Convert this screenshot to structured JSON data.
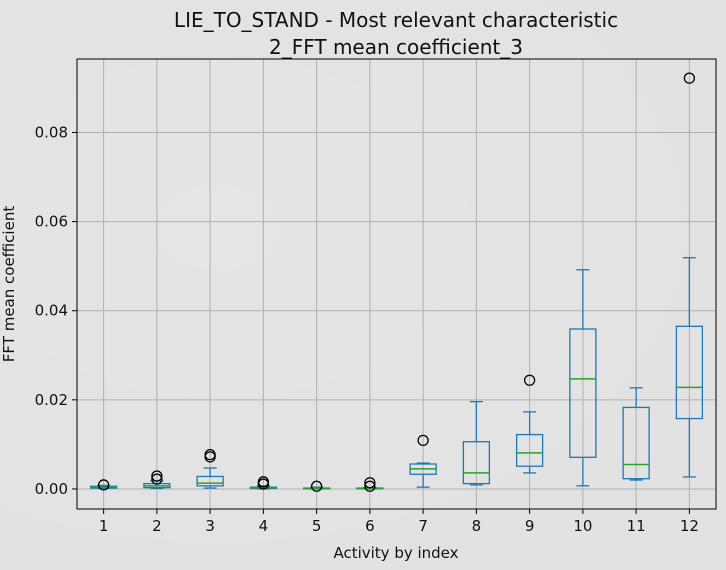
{
  "chart_data": {
    "type": "box",
    "title": "LIE_TO_STAND - Most relevant characteristic",
    "subtitle": "2_FFT mean coefficient_3",
    "xlabel": "Activity by index",
    "ylabel": "FFT mean coefficient",
    "ylim": [
      -0.0045,
      0.0965
    ],
    "yticks": [
      0.0,
      0.02,
      0.04,
      0.06,
      0.08
    ],
    "yticklabels": [
      "0.00",
      "0.02",
      "0.04",
      "0.06",
      "0.08"
    ],
    "grid": true,
    "box_color": "#1f77b4",
    "median_color": "#2ca02c",
    "categories": [
      "1",
      "2",
      "3",
      "4",
      "5",
      "6",
      "7",
      "8",
      "9",
      "10",
      "11",
      "12"
    ],
    "boxes": [
      {
        "whislo": 0.0001,
        "q1": 0.0002,
        "med": 0.0004,
        "q3": 0.0006,
        "whishi": 0.0008,
        "fliers": [
          0.0009
        ]
      },
      {
        "whislo": 0.0001,
        "q1": 0.0003,
        "med": 0.0007,
        "q3": 0.0012,
        "whishi": 0.0018,
        "fliers": [
          0.0022,
          0.0029
        ]
      },
      {
        "whislo": 0.0002,
        "q1": 0.0007,
        "med": 0.0013,
        "q3": 0.0028,
        "whishi": 0.0047,
        "fliers": [
          0.0072,
          0.0077
        ]
      },
      {
        "whislo": 0.0,
        "q1": 0.0001,
        "med": 0.0002,
        "q3": 0.0004,
        "whishi": 0.0007,
        "fliers": [
          0.0011,
          0.0016
        ]
      },
      {
        "whislo": 0.0,
        "q1": 0.0001,
        "med": 0.0001,
        "q3": 0.0002,
        "whishi": 0.0004,
        "fliers": [
          0.0006
        ]
      },
      {
        "whislo": 0.0,
        "q1": 0.0001,
        "med": 0.0001,
        "q3": 0.0002,
        "whishi": 0.0003,
        "fliers": [
          0.0006,
          0.0014
        ]
      },
      {
        "whislo": 0.0004,
        "q1": 0.0033,
        "med": 0.0045,
        "q3": 0.0056,
        "whishi": 0.0058,
        "fliers": [
          0.0109
        ]
      },
      {
        "whislo": 0.0009,
        "q1": 0.0012,
        "med": 0.0036,
        "q3": 0.0106,
        "whishi": 0.0196,
        "fliers": []
      },
      {
        "whislo": 0.0036,
        "q1": 0.0051,
        "med": 0.0081,
        "q3": 0.0122,
        "whishi": 0.0173,
        "fliers": [
          0.0244
        ]
      },
      {
        "whislo": 0.0007,
        "q1": 0.0071,
        "med": 0.0247,
        "q3": 0.0359,
        "whishi": 0.0492,
        "fliers": []
      },
      {
        "whislo": 0.002,
        "q1": 0.0023,
        "med": 0.0055,
        "q3": 0.0183,
        "whishi": 0.0227,
        "fliers": []
      },
      {
        "whislo": 0.0027,
        "q1": 0.0158,
        "med": 0.0228,
        "q3": 0.0365,
        "whishi": 0.0519,
        "fliers": [
          0.0922
        ]
      }
    ]
  }
}
